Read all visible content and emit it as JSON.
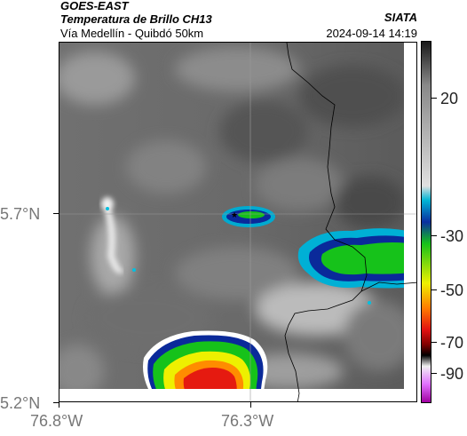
{
  "header": {
    "satellite": "GOES-EAST",
    "product": "Temperatura de Brillo CH13",
    "region": "Vía Medellín - Quibdó 50km",
    "source": "SIATA",
    "timestamp": "2024-09-14 14:19"
  },
  "map": {
    "lat_ticks": [
      "5.7°N",
      "5.2°N"
    ],
    "lon_ticks": [
      "76.8°W",
      "76.3°W"
    ]
  },
  "colorbar": {
    "labels": [
      "20",
      "-30",
      "-50",
      "-70",
      "-90"
    ],
    "colors": [
      "#1a1a1a",
      "#888888",
      "#e0e0e0",
      "#00b5d5",
      "#0a2fa0",
      "#16c21a",
      "#eef000",
      "#ff7a00",
      "#e01010",
      "#800000",
      "#000000",
      "#f0f0f0",
      "#e070ff",
      "#a000a0"
    ]
  }
}
